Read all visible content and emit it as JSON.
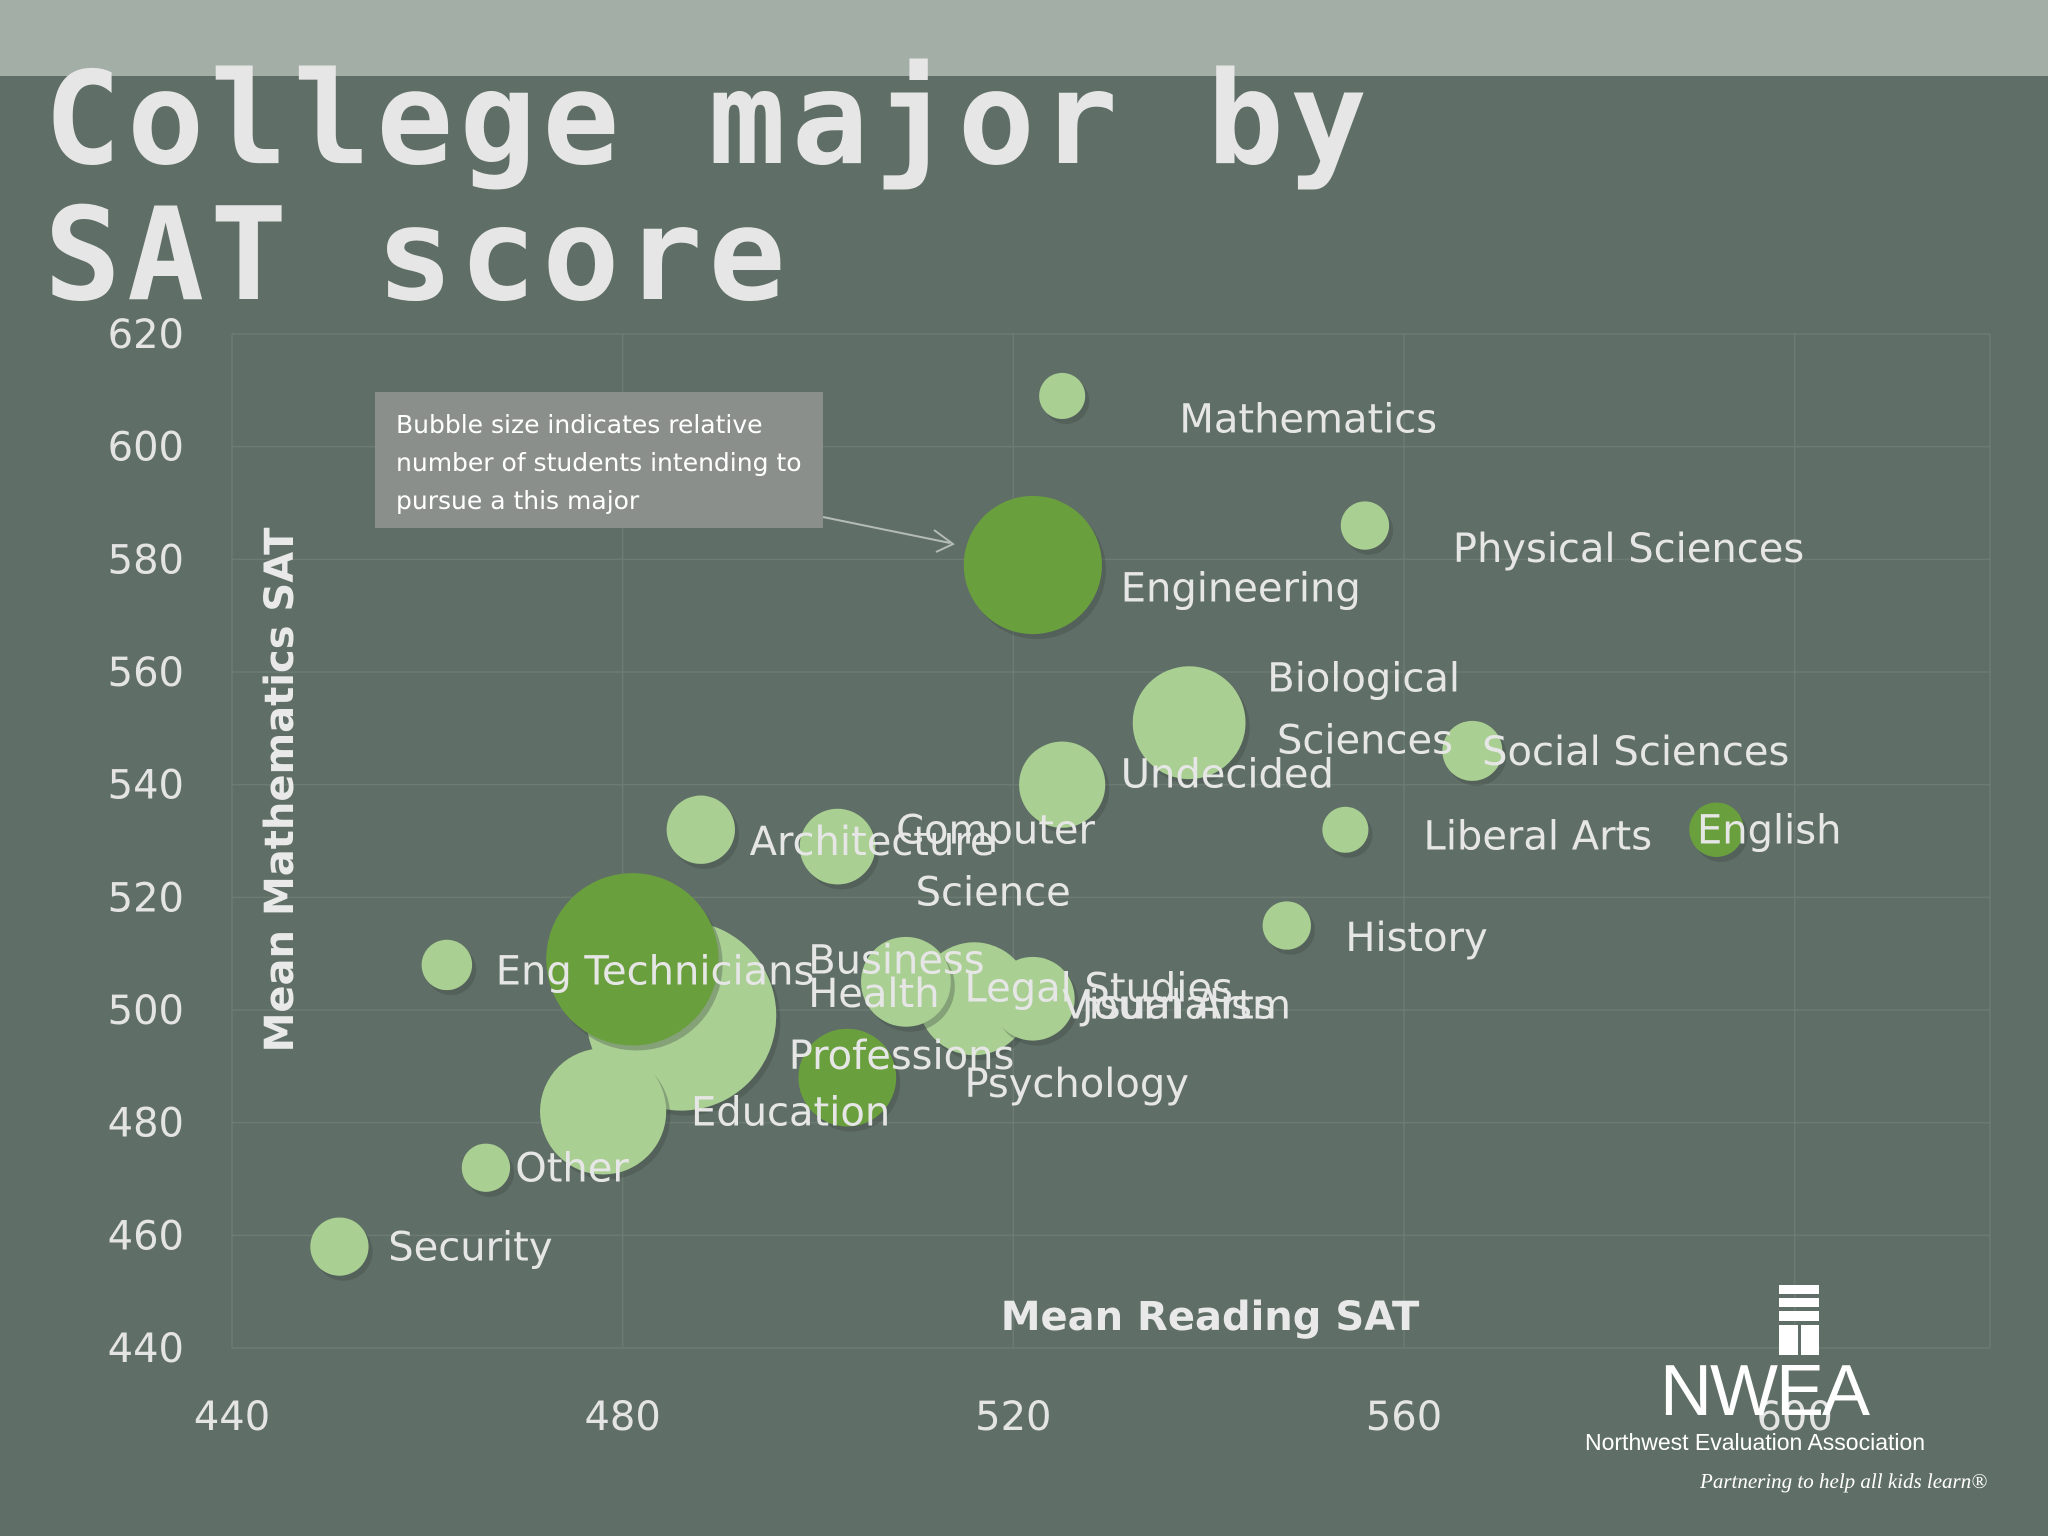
{
  "slide": {
    "title": "College major by SAT score"
  },
  "annotation": {
    "text": "Bubble size indicates relative number of students intending to pursue a this major"
  },
  "logo": {
    "name": "NWEA",
    "full_name": "Northwest Evaluation Association",
    "tagline": "Partnering to help all kids learn®"
  },
  "colors": {
    "background": "#5f6e66",
    "top_band": "#a3aea7",
    "bubble_light": "#a9cf92",
    "bubble_dark": "#6a9f3e",
    "text": "#e6e6e6"
  },
  "chart_data": {
    "type": "scatter",
    "title": "College major by SAT score",
    "xlabel": "Mean Reading SAT",
    "ylabel": "Mean Mathematics SAT",
    "xlim": [
      440,
      620
    ],
    "ylim": [
      440,
      620
    ],
    "xticks": [
      440,
      480,
      520,
      560,
      600
    ],
    "yticks": [
      440,
      460,
      480,
      500,
      520,
      540,
      560,
      580,
      600,
      620
    ],
    "grid": true,
    "bubble_size_meaning": "relative number of students intending to pursue the major",
    "points": [
      {
        "label": "Mathematics",
        "x": 525,
        "y": 609,
        "size": 1,
        "color": "light"
      },
      {
        "label": "Physical Sciences",
        "x": 556,
        "y": 586,
        "size": 1.1,
        "color": "light"
      },
      {
        "label": "Engineering",
        "x": 522,
        "y": 579,
        "size": 9,
        "color": "dark"
      },
      {
        "label": "Biological Sciences",
        "x": 538,
        "y": 551,
        "size": 6,
        "color": "light"
      },
      {
        "label": "Social Sciences",
        "x": 567,
        "y": 546,
        "size": 1.7,
        "color": "light"
      },
      {
        "label": "Computer Science",
        "x": 525,
        "y": 540,
        "size": 3.5,
        "color": "light"
      },
      {
        "label": "Undecided",
        "x": 525,
        "y": 540,
        "size": 0,
        "color": "light"
      },
      {
        "label": "Liberal Arts",
        "x": 554,
        "y": 532,
        "size": 1,
        "color": "light"
      },
      {
        "label": "English",
        "x": 592,
        "y": 532,
        "size": 1.4,
        "color": "dark"
      },
      {
        "label": "Architecture",
        "x": 488,
        "y": 532,
        "size": 2.2,
        "color": "light"
      },
      {
        "label": "Architecture",
        "x": 502,
        "y": 529,
        "size": 2.7,
        "color": "light"
      },
      {
        "label": "History",
        "x": 548,
        "y": 515,
        "size": 1.1,
        "color": "light"
      },
      {
        "label": "Eng Technicians",
        "x": 462,
        "y": 508,
        "size": 1.2,
        "color": "light"
      },
      {
        "label": "Business",
        "x": 481,
        "y": 509,
        "size": 14,
        "color": "dark"
      },
      {
        "label": "Health Professions",
        "x": 486,
        "y": 499,
        "size": 17,
        "color": "light"
      },
      {
        "label": "Legal Studies",
        "x": 509,
        "y": 505,
        "size": 3.8,
        "color": "light"
      },
      {
        "label": "Legal Studies",
        "x": 516,
        "y": 502,
        "size": 6,
        "color": "light"
      },
      {
        "label": "Visual Arts",
        "x": 522,
        "y": 502,
        "size": 3.3,
        "color": "light"
      },
      {
        "label": "Journalism",
        "x": 522,
        "y": 502,
        "size": 0,
        "color": "light"
      },
      {
        "label": "Psychology",
        "x": 503,
        "y": 488,
        "size": 4.5,
        "color": "dark"
      },
      {
        "label": "Education",
        "x": 478,
        "y": 482,
        "size": 7.5,
        "color": "light"
      },
      {
        "label": "Other",
        "x": 466,
        "y": 472,
        "size": 1.1,
        "color": "light"
      },
      {
        "label": "Security",
        "x": 451,
        "y": 458,
        "size": 1.6,
        "color": "light"
      }
    ],
    "visible_labels": [
      "Mathematics",
      "Physical Sciences",
      "Engineering",
      "Biological",
      "Sciences",
      "Social Sciences",
      "Computer",
      "Science",
      "Undecided",
      "Liberal Arts",
      "English",
      "Architecture",
      "History",
      "Eng Technicians",
      "Business",
      "Health",
      "Professions",
      "Legal Studies",
      "Visual Arts",
      "Journalism",
      "Psychology",
      "Education",
      "Other",
      "Security"
    ]
  }
}
